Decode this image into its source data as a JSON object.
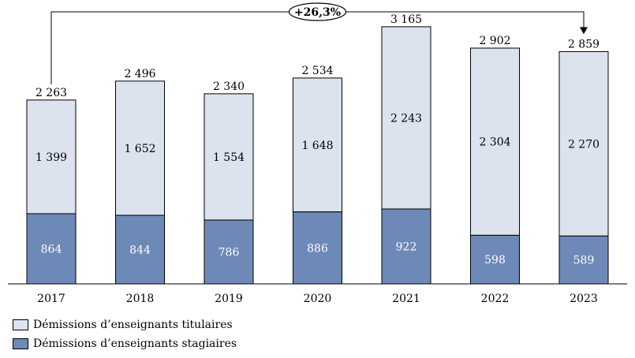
{
  "chart_data": {
    "type": "bar",
    "stacked": true,
    "categories": [
      "2017",
      "2018",
      "2019",
      "2020",
      "2021",
      "2022",
      "2023"
    ],
    "series": [
      {
        "name": "Démissions d’enseignants stagiaires",
        "values": [
          864,
          844,
          786,
          886,
          922,
          598,
          589
        ],
        "color": "#6d89b8"
      },
      {
        "name": "Démissions d’enseignants titulaires",
        "values": [
          1399,
          1652,
          1554,
          1648,
          2243,
          2304,
          2270
        ],
        "color": "#dde3ee"
      }
    ],
    "segment_labels": {
      "stagiaires": [
        "864",
        "844",
        "786",
        "886",
        "922",
        "598",
        "589"
      ],
      "titulaires": [
        "1 399",
        "1 652",
        "1 554",
        "1 648",
        "2 243",
        "2 304",
        "2 270"
      ]
    },
    "totals": [
      "2 263",
      "2 496",
      "2 340",
      "2 534",
      "3 165",
      "2 902",
      "2 859"
    ],
    "annotation": {
      "text": "+26,3%",
      "from": "2017",
      "to": "2023"
    },
    "ylim": [
      0,
      3300
    ],
    "grid": false,
    "legend_position": "bottom-left",
    "title": "",
    "xlabel": "",
    "ylabel": ""
  }
}
